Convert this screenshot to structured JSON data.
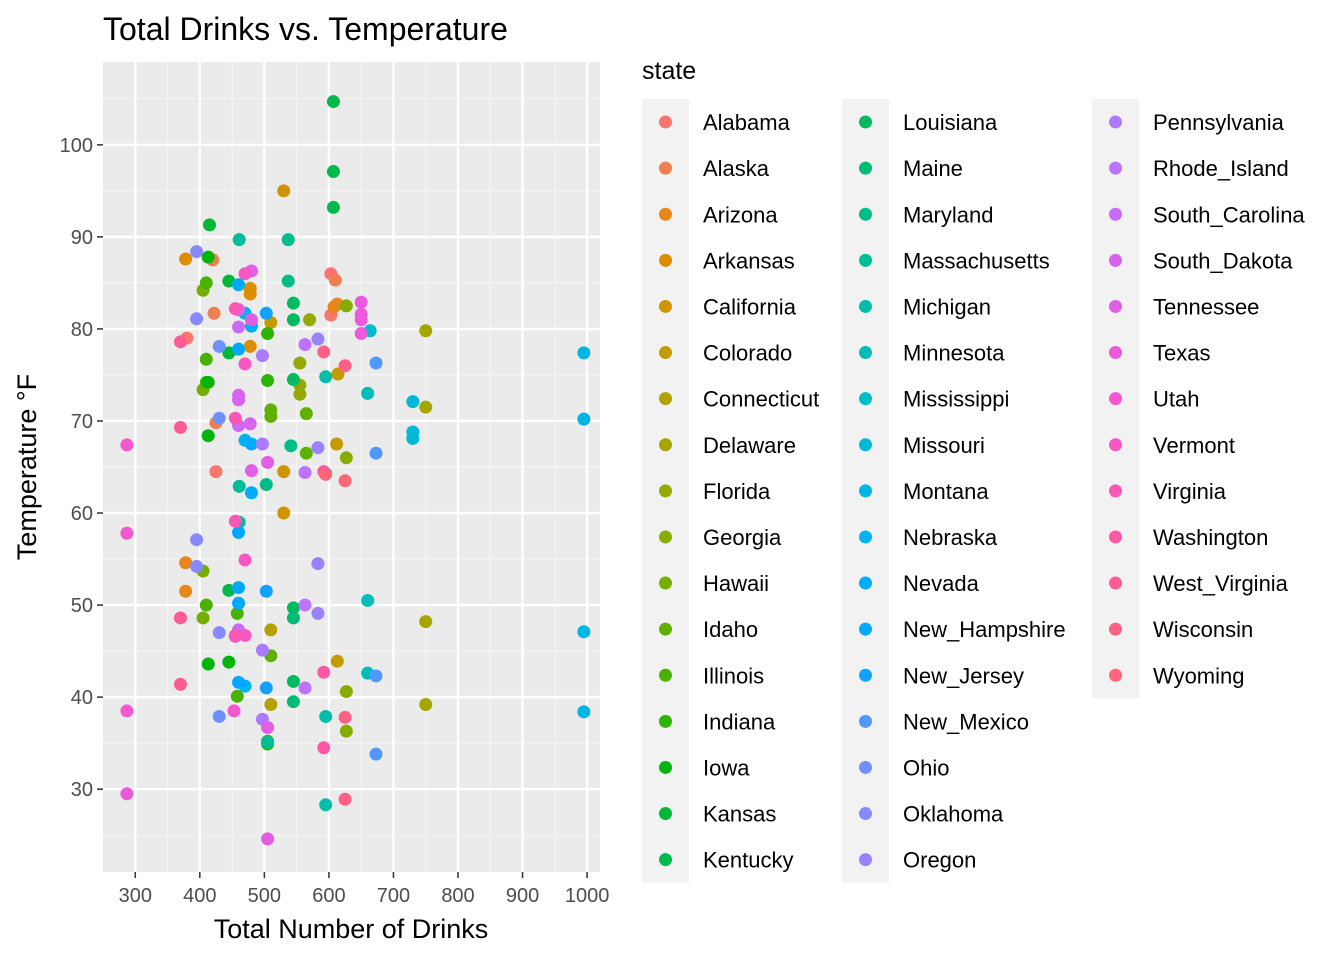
{
  "chart_data": {
    "type": "scatter",
    "title": "Total Drinks vs. Temperature",
    "xlabel": "Total Number of Drinks",
    "ylabel": "Temperature °F",
    "xlim": [
      250,
      1020
    ],
    "ylim": [
      21,
      109
    ],
    "x_ticks": [
      300,
      400,
      500,
      600,
      700,
      800,
      900,
      1000
    ],
    "y_ticks": [
      30,
      40,
      50,
      60,
      70,
      80,
      90,
      100
    ],
    "grid": true,
    "legend_title": "state",
    "legend_position": "right",
    "series": [
      {
        "name": "Alabama",
        "color": "#F8766D",
        "points": [
          [
            380,
            79
          ],
          [
            425,
            64.5
          ],
          [
            603,
            81.5
          ],
          [
            603,
            86
          ]
        ]
      },
      {
        "name": "Alaska",
        "color": "#F07F50",
        "points": [
          [
            420,
            87.5
          ],
          [
            422,
            81.7
          ],
          [
            425,
            69.8
          ],
          [
            610,
            85.3
          ]
        ]
      },
      {
        "name": "Arizona",
        "color": "#E7861B",
        "points": [
          [
            378,
            54.6
          ],
          [
            378,
            51.5
          ],
          [
            613,
            82.7
          ],
          [
            608,
            82.4
          ]
        ]
      },
      {
        "name": "Arkansas",
        "color": "#DC8D00",
        "points": [
          [
            378,
            87.6
          ],
          [
            478,
            84.4
          ],
          [
            478,
            83.8
          ],
          [
            478,
            78.1
          ]
        ]
      },
      {
        "name": "California",
        "color": "#D09400",
        "points": [
          [
            530,
            95
          ],
          [
            530,
            64.5
          ],
          [
            530,
            60
          ]
        ]
      },
      {
        "name": "Colorado",
        "color": "#C39A00",
        "points": [
          [
            510,
            80.7
          ],
          [
            612,
            67.5
          ],
          [
            614,
            75.1
          ],
          [
            613,
            43.9
          ]
        ]
      },
      {
        "name": "Connecticut",
        "color": "#B4A000",
        "points": [
          [
            510,
            47.3
          ],
          [
            510,
            39.2
          ]
        ]
      },
      {
        "name": "Delaware",
        "color": "#A5A500",
        "points": [
          [
            750,
            79.8
          ],
          [
            750,
            71.5
          ],
          [
            750,
            48.2
          ],
          [
            750,
            39.2
          ]
        ]
      },
      {
        "name": "Florida",
        "color": "#96A900",
        "points": [
          [
            555,
            76.3
          ],
          [
            555,
            73.9
          ],
          [
            555,
            72.9
          ],
          [
            570,
            81
          ]
        ]
      },
      {
        "name": "Georgia",
        "color": "#86AC00",
        "points": [
          [
            627,
            82.5
          ],
          [
            627,
            66
          ],
          [
            627,
            40.6
          ],
          [
            627,
            36.3
          ]
        ]
      },
      {
        "name": "Hawaii",
        "color": "#74AE00",
        "points": [
          [
            405,
            84.2
          ],
          [
            405,
            73.4
          ],
          [
            405,
            53.7
          ],
          [
            405,
            48.6
          ]
        ]
      },
      {
        "name": "Idaho",
        "color": "#60B000",
        "points": [
          [
            510,
            71.2
          ],
          [
            510,
            70.5
          ],
          [
            510,
            44.5
          ],
          [
            565,
            70.8
          ],
          [
            565,
            66.5
          ]
        ]
      },
      {
        "name": "Illinois",
        "color": "#49B200",
        "points": [
          [
            410,
            85
          ],
          [
            410,
            76.7
          ],
          [
            410,
            74.2
          ],
          [
            410,
            50
          ],
          [
            458,
            49.1
          ],
          [
            458,
            40.1
          ]
        ]
      },
      {
        "name": "Indiana",
        "color": "#2DB400",
        "points": [
          [
            505,
            79.5
          ],
          [
            505,
            74.4
          ],
          [
            505,
            35.2
          ],
          [
            505,
            34.9
          ]
        ]
      },
      {
        "name": "Iowa",
        "color": "#00B60A",
        "points": [
          [
            413,
            87.8
          ],
          [
            413,
            74.2
          ],
          [
            413,
            68.4
          ],
          [
            413,
            43.6
          ],
          [
            445,
            43.8
          ]
        ]
      },
      {
        "name": "Kansas",
        "color": "#00B833",
        "points": [
          [
            415,
            91.3
          ],
          [
            445,
            85.2
          ],
          [
            445,
            77.4
          ]
        ]
      },
      {
        "name": "Kentucky",
        "color": "#00B94B",
        "points": [
          [
            607,
            104.7
          ],
          [
            607,
            97.1
          ],
          [
            607,
            93.2
          ],
          [
            445,
            51.6
          ]
        ]
      },
      {
        "name": "Louisiana",
        "color": "#00BA60",
        "points": [
          [
            545,
            82.8
          ],
          [
            545,
            81
          ],
          [
            545,
            74.5
          ],
          [
            545,
            49.7
          ],
          [
            545,
            41.7
          ]
        ]
      },
      {
        "name": "Maine",
        "color": "#00BB74",
        "points": [
          [
            545,
            48.6
          ],
          [
            545,
            39.5
          ]
        ]
      },
      {
        "name": "Maryland",
        "color": "#00BC86",
        "points": [
          [
            537,
            85.2
          ],
          [
            537,
            89.7
          ],
          [
            541,
            67.3
          ],
          [
            503,
            63.1
          ]
        ]
      },
      {
        "name": "Massachusetts",
        "color": "#00BD98",
        "points": [
          [
            461,
            89.7
          ],
          [
            461,
            62.9
          ],
          [
            461,
            59
          ],
          [
            505,
            35.1
          ]
        ]
      },
      {
        "name": "Michigan",
        "color": "#00BEA9",
        "points": [
          [
            595,
            74.8
          ],
          [
            595,
            64.3
          ],
          [
            595,
            37.9
          ],
          [
            595,
            28.3
          ]
        ]
      },
      {
        "name": "Minnesota",
        "color": "#00BDB9",
        "points": [
          [
            660,
            73
          ],
          [
            660,
            50.5
          ],
          [
            660,
            42.6
          ]
        ]
      },
      {
        "name": "Mississippi",
        "color": "#00BCC8",
        "points": [
          [
            664,
            79.8
          ]
        ]
      },
      {
        "name": "Missouri",
        "color": "#00B9D6",
        "points": [
          [
            730,
            72.1
          ],
          [
            730,
            68.8
          ],
          [
            730,
            68.1
          ]
        ]
      },
      {
        "name": "Montana",
        "color": "#00B6E3",
        "points": [
          [
            995,
            77.4
          ],
          [
            995,
            70.2
          ],
          [
            995,
            47.1
          ],
          [
            995,
            38.4
          ]
        ]
      },
      {
        "name": "Nebraska",
        "color": "#00B2EF",
        "points": [
          [
            470,
            81.7
          ],
          [
            470,
            67.9
          ],
          [
            470,
            41.2
          ]
        ]
      },
      {
        "name": "Nevada",
        "color": "#00ADFA",
        "points": [
          [
            480,
            80.3
          ],
          [
            480,
            67.5
          ],
          [
            480,
            62.2
          ]
        ]
      },
      {
        "name": "New_Hampshire",
        "color": "#00A8FF",
        "points": [
          [
            460,
            84.8
          ],
          [
            460,
            77.8
          ],
          [
            460,
            57.9
          ],
          [
            460,
            51.9
          ],
          [
            460,
            50.2
          ],
          [
            460,
            41.6
          ]
        ]
      },
      {
        "name": "New_Jersey",
        "color": "#13A0FF",
        "points": [
          [
            503,
            81.7
          ],
          [
            503,
            51.5
          ],
          [
            503,
            41
          ]
        ]
      },
      {
        "name": "New_Mexico",
        "color": "#5098FF",
        "points": [
          [
            673,
            76.3
          ],
          [
            673,
            66.5
          ],
          [
            673,
            42.3
          ],
          [
            673,
            33.8
          ]
        ]
      },
      {
        "name": "Ohio",
        "color": "#6F91FF",
        "points": [
          [
            430,
            78.1
          ],
          [
            430,
            70.3
          ],
          [
            430,
            37.9
          ]
        ]
      },
      {
        "name": "Oklahoma",
        "color": "#8789FF",
        "points": [
          [
            395,
            88.4
          ],
          [
            395,
            81.1
          ],
          [
            395,
            57.1
          ],
          [
            395,
            54.2
          ],
          [
            430,
            47
          ]
        ]
      },
      {
        "name": "Oregon",
        "color": "#9A82FF",
        "points": [
          [
            583,
            78.9
          ],
          [
            583,
            67.1
          ],
          [
            583,
            54.5
          ],
          [
            583,
            49.1
          ]
        ]
      },
      {
        "name": "Pennsylvania",
        "color": "#AC7AFF",
        "points": [
          [
            497,
            77.1
          ],
          [
            497,
            67.5
          ],
          [
            497,
            45.1
          ],
          [
            497,
            37.6
          ]
        ]
      },
      {
        "name": "Rhode_Island",
        "color": "#BC73FF",
        "points": [
          [
            563,
            78.3
          ],
          [
            563,
            64.4
          ],
          [
            563,
            50
          ],
          [
            563,
            41
          ]
        ]
      },
      {
        "name": "South_Carolina",
        "color": "#CA6BF6",
        "points": [
          [
            460,
            80.2
          ],
          [
            460,
            69.5
          ],
          [
            460,
            47.3
          ],
          [
            455,
            46.6
          ]
        ]
      },
      {
        "name": "South_Dakota",
        "color": "#D664EE",
        "points": [
          [
            460,
            82.1
          ],
          [
            460,
            72.8
          ],
          [
            460,
            72.3
          ],
          [
            478,
            69.7
          ]
        ]
      },
      {
        "name": "Tennessee",
        "color": "#E15EE5",
        "points": [
          [
            480,
            86.3
          ],
          [
            480,
            81
          ],
          [
            480,
            64.6
          ],
          [
            505,
            65.5
          ],
          [
            505,
            36.7
          ],
          [
            505,
            24.6
          ]
        ]
      },
      {
        "name": "Texas",
        "color": "#EA5ADA",
        "points": [
          [
            650,
            82.9
          ],
          [
            650,
            81.6
          ],
          [
            650,
            81
          ],
          [
            650,
            79.5
          ],
          [
            287,
            29.5
          ]
        ]
      },
      {
        "name": "Utah",
        "color": "#F258CF",
        "points": [
          [
            287,
            67.4
          ],
          [
            287,
            57.8
          ],
          [
            287,
            38.5
          ],
          [
            453,
            38.5
          ]
        ]
      },
      {
        "name": "Vermont",
        "color": "#F857C1",
        "points": [
          [
            470,
            86
          ],
          [
            470,
            76.2
          ],
          [
            470,
            54.9
          ],
          [
            470,
            46.7
          ]
        ]
      },
      {
        "name": "Virginia",
        "color": "#FC57B4",
        "points": [
          [
            455,
            82.2
          ],
          [
            455,
            70.3
          ],
          [
            455,
            59.1
          ],
          [
            455,
            46.7
          ]
        ]
      },
      {
        "name": "Washington",
        "color": "#FF59A5",
        "points": [
          [
            592,
            64.5
          ],
          [
            592,
            42.7
          ],
          [
            592,
            34.5
          ]
        ]
      },
      {
        "name": "West_Virginia",
        "color": "#FF5C96",
        "points": [
          [
            370,
            78.6
          ],
          [
            370,
            69.3
          ],
          [
            370,
            48.6
          ],
          [
            370,
            41.4
          ]
        ]
      },
      {
        "name": "Wisconsin",
        "color": "#FF6186",
        "points": [
          [
            592,
            77.5
          ],
          [
            625,
            76
          ],
          [
            625,
            37.8
          ],
          [
            625,
            28.9
          ]
        ]
      },
      {
        "name": "Wyoming",
        "color": "#FF6677",
        "points": [
          [
            625,
            63.5
          ],
          [
            595,
            64.2
          ]
        ]
      }
    ]
  }
}
